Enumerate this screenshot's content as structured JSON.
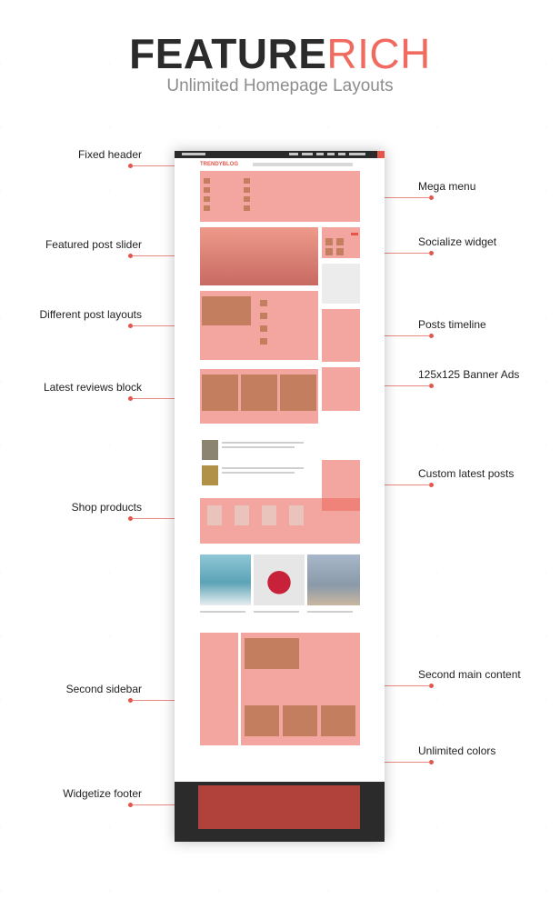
{
  "header": {
    "title_main": "FEATURE",
    "title_accent": "RICH",
    "subtitle": "Unlimited Homepage Layouts"
  },
  "callouts_left": [
    "Fixed header",
    "Featured post slider",
    "Different post layouts",
    "Latest reviews block",
    "Shop products",
    "Second sidebar",
    "Widgetize footer"
  ],
  "callouts_right": [
    "Mega menu",
    "Socialize widget",
    "Posts timeline",
    "125x125 Banner Ads",
    "Custom latest posts",
    "Second main content",
    "Unlimited colors"
  ],
  "mockup": {
    "logo": "TRENDYBLOG"
  },
  "colors": {
    "accent": "#e5554a",
    "title_dark": "#2b2b2b",
    "subtitle": "#8d8d8d",
    "overlay": "#ec6e64"
  }
}
